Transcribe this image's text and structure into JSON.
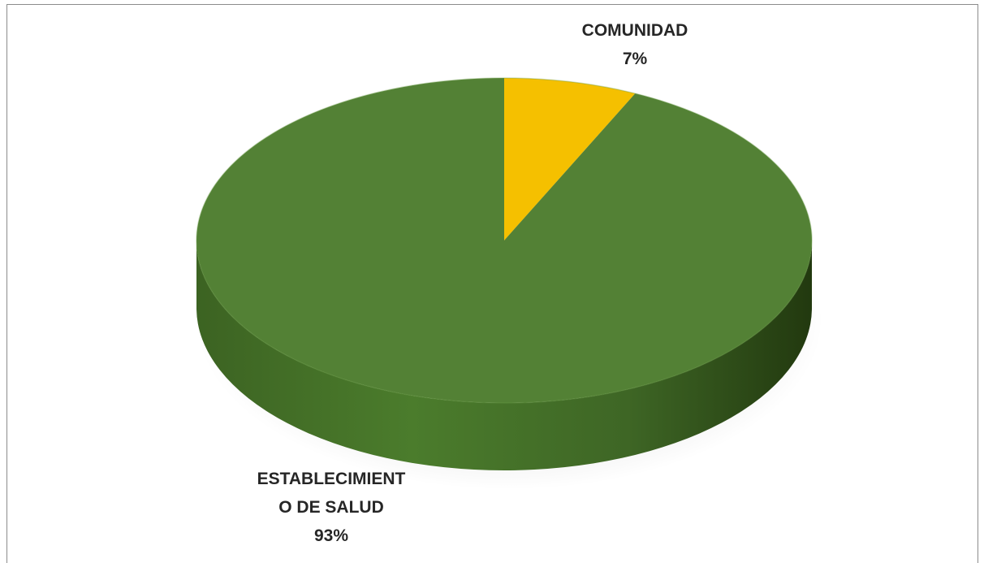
{
  "chart_data": {
    "type": "pie",
    "three_d": true,
    "title": "",
    "labels": [
      "COMUNIDAD",
      "ESTABLECIMIENTO DE SALUD"
    ],
    "label_lines": [
      [
        "COMUNIDAD"
      ],
      [
        "ESTABLECIMIENT",
        "O DE SALUD"
      ]
    ],
    "values": [
      7,
      93
    ],
    "value_labels": [
      "7%",
      "93%"
    ],
    "colors": [
      "#f5c000",
      "#538135"
    ],
    "legend": "none"
  }
}
